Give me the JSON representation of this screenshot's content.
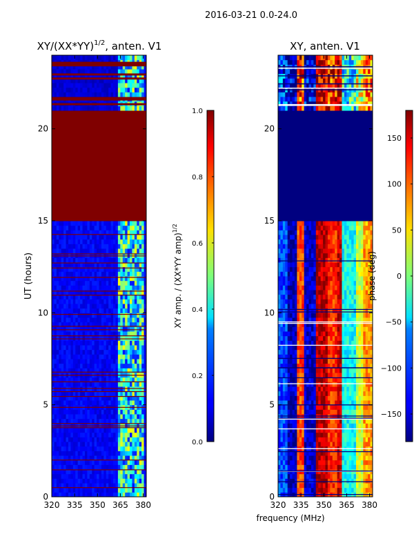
{
  "suptitle": "2016-03-21 0.0-24.0",
  "xlabel": "frequency (MHz)",
  "chart_data": [
    {
      "type": "heatmap",
      "title_main": "XY/(XX*YY)",
      "title_sup": "1/2",
      "title_tail": ", anten. V1",
      "ylabel": "UT (hours)",
      "xlim": [
        320,
        382
      ],
      "ylim": [
        0,
        24
      ],
      "xticks": [
        320,
        335,
        350,
        365,
        380
      ],
      "yticks": [
        0,
        5,
        10,
        15,
        20
      ],
      "colorbar": {
        "label_main": "XY amp. / (XX*YY amp)",
        "label_sup": "1/2",
        "range": [
          0.0,
          1.0
        ],
        "ticks": [
          "0.0",
          "0.2",
          "0.4",
          "0.6",
          "0.8",
          "1.0"
        ],
        "colormap": "jet"
      },
      "saturated_block_hours": [
        15.1,
        21.0
      ],
      "upper_block_value": 0.05,
      "background_value": 0.08,
      "bright_band_mhz": [
        363,
        381
      ],
      "bright_band_value": 0.45
    },
    {
      "type": "heatmap",
      "title_main": "XY, anten. V1",
      "xlim": [
        320,
        382
      ],
      "ylim": [
        0,
        24
      ],
      "xticks": [
        320,
        335,
        350,
        365,
        380
      ],
      "yticks": [
        0,
        5,
        10,
        15,
        20
      ],
      "colorbar": {
        "label_main": "phase (deg)",
        "range": [
          -180,
          180
        ],
        "ticks": [
          "−150",
          "−100",
          "−50",
          "0",
          "50",
          "100",
          "150"
        ],
        "tick_values": [
          -150,
          -100,
          -50,
          0,
          50,
          100,
          150
        ],
        "colormap": "jet"
      },
      "flagged_block_hours": [
        15.1,
        21.0
      ],
      "flagged_value": -180,
      "column_bands_mhz": [
        {
          "range": [
            320,
            326
          ],
          "value": -110
        },
        {
          "range": [
            326,
            333
          ],
          "value": -160
        },
        {
          "range": [
            333,
            337
          ],
          "value": 110
        },
        {
          "range": [
            337,
            345
          ],
          "value": -150
        },
        {
          "range": [
            345,
            352
          ],
          "value": 160
        },
        {
          "range": [
            352,
            358
          ],
          "value": 120
        },
        {
          "range": [
            358,
            362
          ],
          "value": 150
        },
        {
          "range": [
            362,
            371
          ],
          "value": -40
        },
        {
          "range": [
            371,
            376
          ],
          "value": 30
        },
        {
          "range": [
            376,
            382
          ],
          "value": 80
        }
      ]
    }
  ]
}
